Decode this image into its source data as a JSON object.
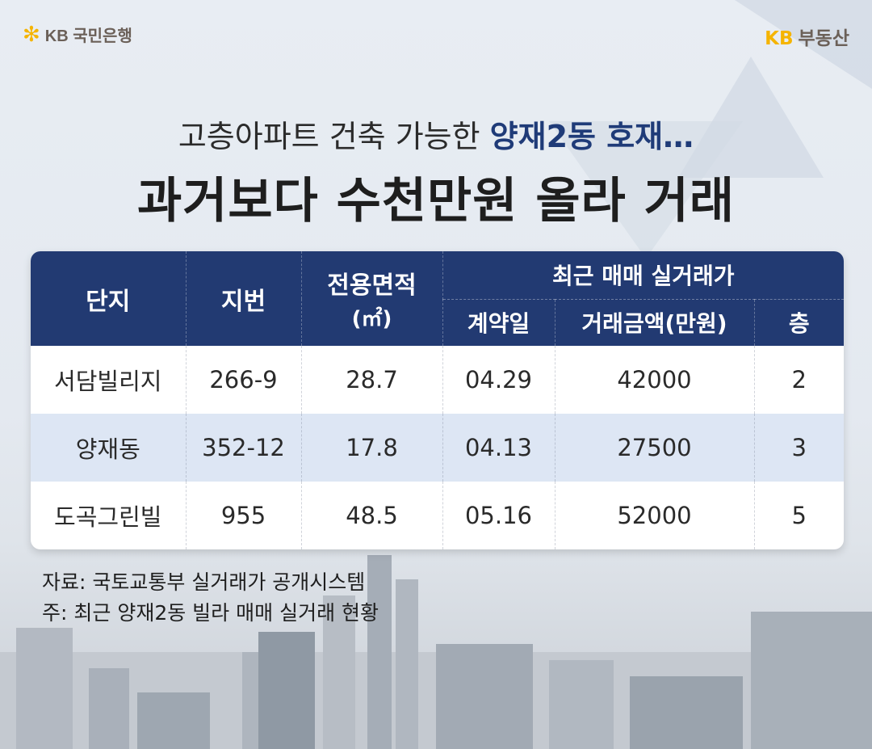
{
  "brand": {
    "bank_logo_text": "KB 국민은행",
    "estate_mark": "KB",
    "estate_text": "부동산",
    "accent_color": "#f5b400"
  },
  "headline": {
    "prefix": "고층아파트 건축 가능한 ",
    "highlight": "양재2동 호재…",
    "title": "과거보다 수천만원 올라 거래"
  },
  "table": {
    "header_color": "#223a72",
    "columns": {
      "complex": "단지",
      "lot": "지번",
      "area": "전용면적",
      "area_unit": "(㎡)",
      "group": "최근 매매 실거래가",
      "date": "계약일",
      "price": "거래금액(만원)",
      "floor": "층"
    },
    "rows": [
      {
        "complex": "서담빌리지",
        "lot": "266-9",
        "area": "28.7",
        "date": "04.29",
        "price": "42000",
        "floor": "2"
      },
      {
        "complex": "양재동",
        "lot": "352-12",
        "area": "17.8",
        "date": "04.13",
        "price": "27500",
        "floor": "3"
      },
      {
        "complex": "도곡그린빌",
        "lot": "955",
        "area": "48.5",
        "date": "05.16",
        "price": "52000",
        "floor": "5"
      }
    ]
  },
  "notes": {
    "source": "자료: 국토교통부 실거래가 공개시스템",
    "note": "주: 최근 양재2동 빌라 매매 실거래 현황"
  }
}
